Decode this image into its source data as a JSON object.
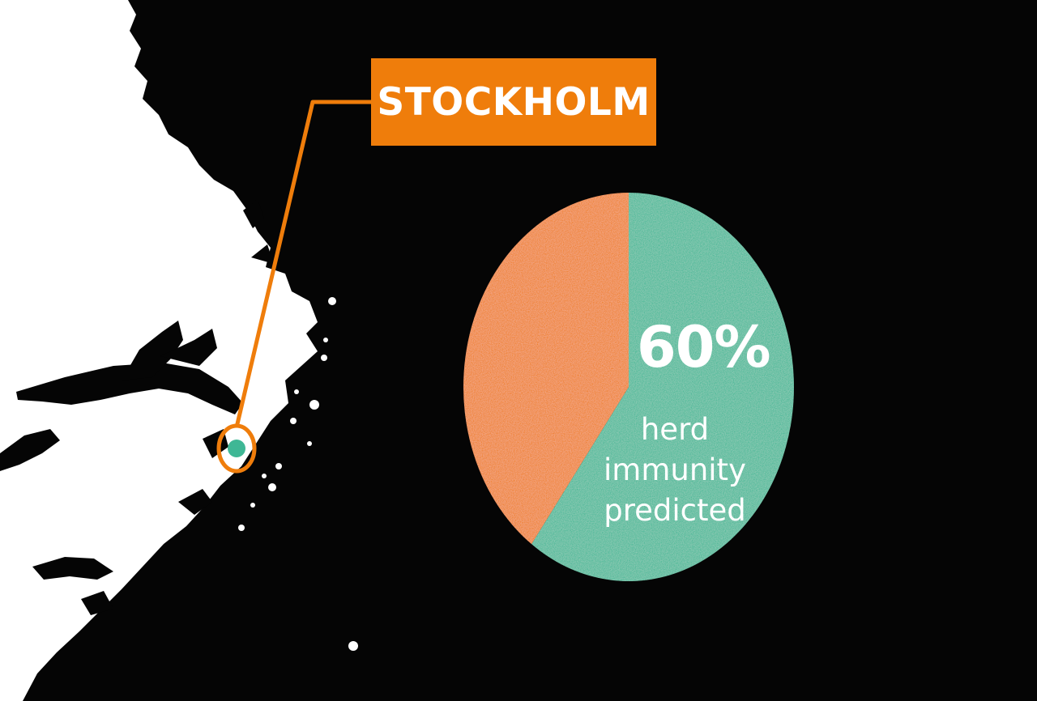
{
  "map": {
    "city_label": "STOCKHOLM",
    "land_color": "#ffffff",
    "water_color": "#050505",
    "accent_color": "#ef7d0b",
    "marker_color": "#3fb795"
  },
  "chart_data": {
    "type": "pie",
    "slices": [
      {
        "value": 40,
        "color": "#ef7d0b"
      },
      {
        "value": 60,
        "color": "#3fb795"
      }
    ],
    "label": "60%",
    "caption": [
      "herd",
      "immunity",
      "predicted"
    ]
  }
}
